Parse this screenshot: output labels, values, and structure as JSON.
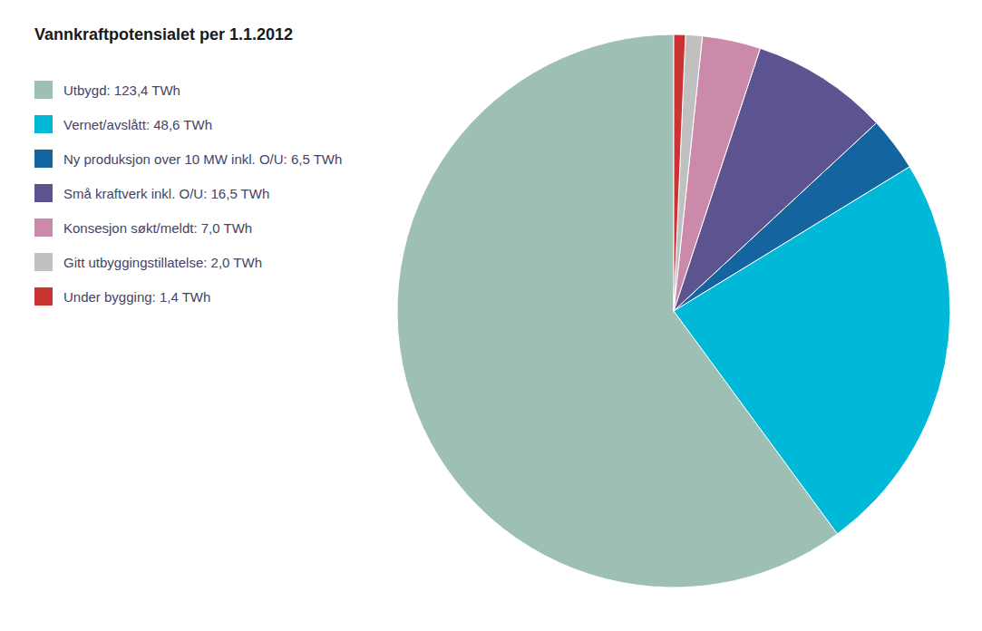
{
  "chart_data": {
    "type": "pie",
    "title": "Vannkraftpotensialet per 1.1.2012",
    "categories": [
      "Utbygd: 123,4 TWh",
      "Vernet/avslått: 48,6 TWh",
      "Ny produksjon over 10 MW inkl. O/U: 6,5 TWh",
      "Små kraftverk inkl. O/U: 16,5 TWh",
      "Konsesjon søkt/meldt: 7,0 TWh",
      "Gitt utbyggingstillatelse: 2,0 TWh",
      "Under bygging: 1,4 TWh"
    ],
    "values": [
      123.4,
      48.6,
      6.5,
      16.5,
      7.0,
      2.0,
      1.4
    ],
    "colors": [
      "#9dbfb4",
      "#00b8d8",
      "#1464a0",
      "#5c5490",
      "#cc8aaa",
      "#c0c0c0",
      "#cc3333"
    ],
    "legend": "left"
  }
}
